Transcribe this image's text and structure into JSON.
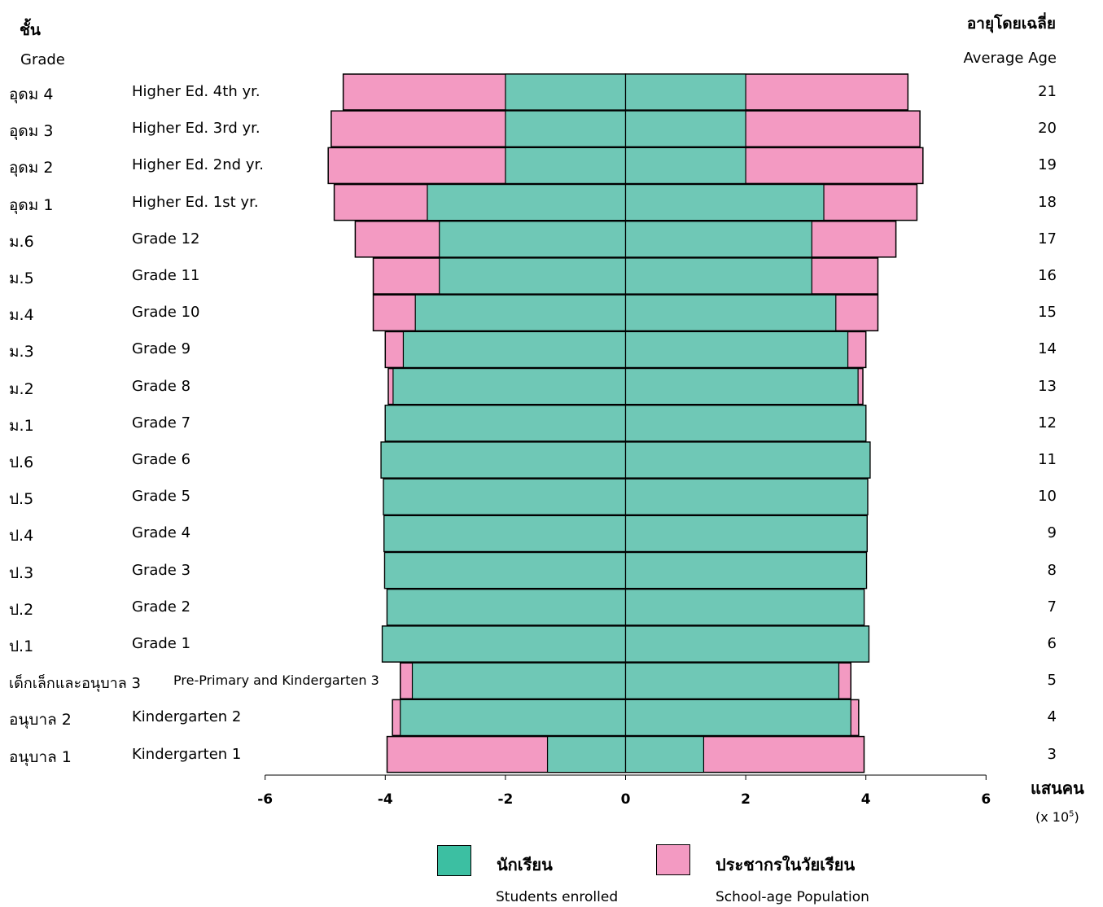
{
  "header": {
    "grade_th": "ชั้น",
    "grade_en": "Grade",
    "age_th": "อายุโดยเฉลี่ย",
    "age_en": "Average Age"
  },
  "rows": [
    {
      "th": "อุดม 4",
      "en": "Higher Ed. 4th  yr.",
      "age": "21"
    },
    {
      "th": "อุดม 3",
      "en": "Higher Ed. 3rd  yr.",
      "age": "20"
    },
    {
      "th": "อุดม 2",
      "en": "Higher Ed. 2nd yr.",
      "age": "19"
    },
    {
      "th": "อุดม 1",
      "en": "Higher Ed. 1st  yr.",
      "age": "18"
    },
    {
      "th": "ม.6",
      "en": "Grade 12",
      "age": "17"
    },
    {
      "th": "ม.5",
      "en": "Grade 11",
      "age": "16"
    },
    {
      "th": "ม.4",
      "en": "Grade 10",
      "age": "15"
    },
    {
      "th": "ม.3",
      "en": "Grade 9",
      "age": "14"
    },
    {
      "th": "ม.2",
      "en": "Grade 8",
      "age": "13"
    },
    {
      "th": "ม.1",
      "en": "Grade 7",
      "age": "12"
    },
    {
      "th": "ป.6",
      "en": "Grade 6",
      "age": "11"
    },
    {
      "th": "ป.5",
      "en": "Grade 5",
      "age": "10"
    },
    {
      "th": "ป.4",
      "en": "Grade 4",
      "age": "9"
    },
    {
      "th": "ป.3",
      "en": "Grade 3",
      "age": "8"
    },
    {
      "th": "ป.2",
      "en": "Grade 2",
      "age": "7"
    },
    {
      "th": "ป.1",
      "en": "Grade 1",
      "age": "6"
    },
    {
      "th": "เด็กเล็กและอนุบาล 3",
      "en": "Pre-Primary and Kindergarten 3",
      "age": "5"
    },
    {
      "th": "อนุบาล 2",
      "en": "Kindergarten 2",
      "age": "4"
    },
    {
      "th": "อนุบาล 1",
      "en": "Kindergarten 1",
      "age": "3"
    }
  ],
  "axis": {
    "ticks": [
      "-6",
      "-4",
      "-2",
      "0",
      "2",
      "4",
      "6"
    ],
    "unit_th": "แสนคน",
    "unit_en_prefix": "(x 10",
    "unit_en_exp": "5",
    "unit_en_suffix": ")"
  },
  "legend": {
    "students_th": "นักเรียน",
    "students_en": "Students enrolled",
    "population_th": "ประชากรในวัยเรียน",
    "population_en": "School-age Population"
  },
  "colors": {
    "students": "#6fc8b6",
    "population": "#f39ac2",
    "legend_students": "#3cbfa2",
    "border": "#000000"
  },
  "chart_data": {
    "type": "bar",
    "orientation": "horizontal-mirrored",
    "categories": [
      "อุดม 4",
      "อุดม 3",
      "อุดม 2",
      "อุดม 1",
      "ม.6",
      "ม.5",
      "ม.4",
      "ม.3",
      "ม.2",
      "ม.1",
      "ป.6",
      "ป.5",
      "ป.4",
      "ป.3",
      "ป.2",
      "ป.1",
      "เด็กเล็กและอนุบาล 3",
      "อนุบาล 2",
      "อนุบาล 1"
    ],
    "series": [
      {
        "name": "นักเรียน Students enrolled",
        "values": [
          2.0,
          2.0,
          2.0,
          3.3,
          3.1,
          3.1,
          3.5,
          3.7,
          3.87,
          4.0,
          4.07,
          4.03,
          4.02,
          4.01,
          3.97,
          4.05,
          3.55,
          3.75,
          1.3
        ]
      },
      {
        "name": "ประชากรในวัยเรียน School-age Population",
        "values": [
          4.7,
          4.9,
          4.95,
          4.85,
          4.5,
          4.2,
          4.2,
          4.0,
          3.95,
          4.0,
          4.07,
          4.03,
          4.02,
          4.01,
          3.97,
          4.05,
          3.75,
          3.88,
          3.97
        ]
      }
    ],
    "xlim": [
      -6,
      6
    ],
    "xticks": [
      -6,
      -4,
      -2,
      0,
      2,
      4,
      6
    ],
    "xlabel": "แสนคน (x 10^5)"
  }
}
